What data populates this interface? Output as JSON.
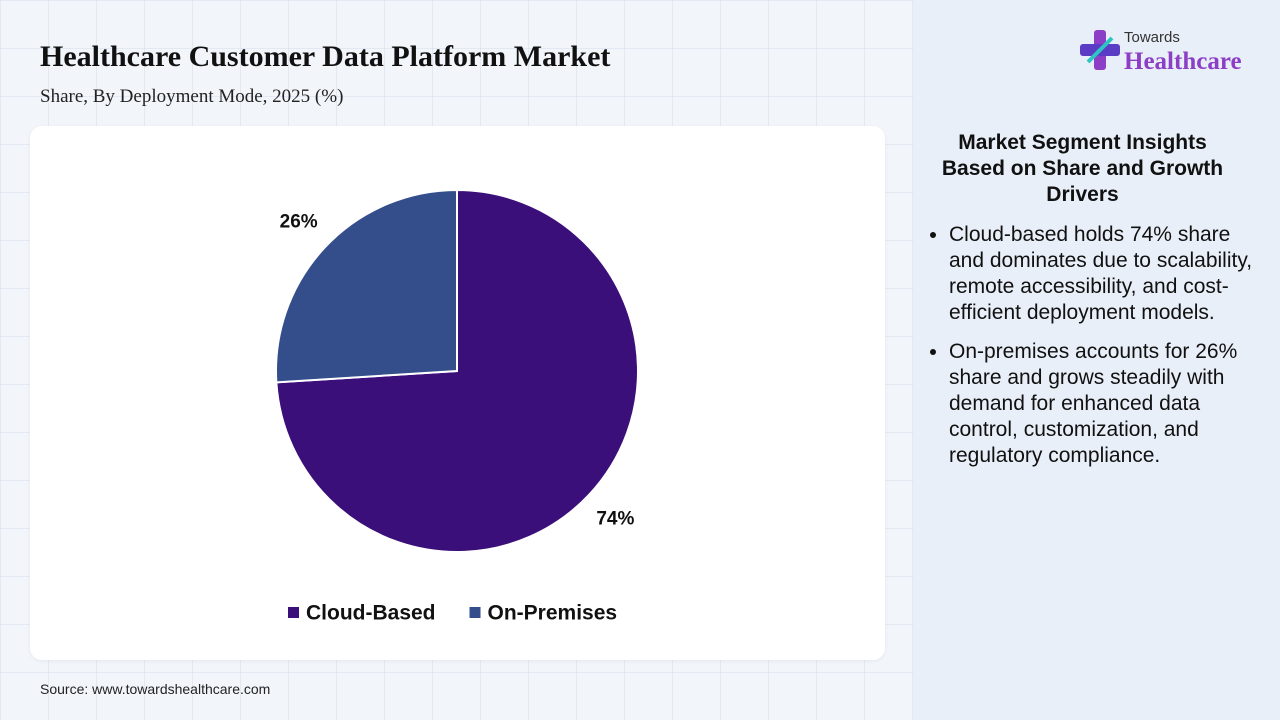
{
  "chart_data": {
    "type": "pie",
    "title": "Healthcare Customer Data Platform Market",
    "subtitle": "Share, By Deployment Mode, 2025 (%)",
    "categories": [
      "Cloud-Based",
      "On-Premises"
    ],
    "values": [
      74,
      26
    ],
    "value_labels": [
      "74%",
      "26%"
    ],
    "colors": [
      "#3b0f7a",
      "#344e8c"
    ],
    "legend": "bottom"
  },
  "source": "Source: www.towardshealthcare.com",
  "logo": {
    "line1": "Towards",
    "line2": "Healthcare"
  },
  "insights": {
    "heading": "Market Segment Insights Based on Share and Growth Drivers",
    "items": [
      "Cloud-based holds 74% share and dominates due to scalability, remote accessibility, and cost-efficient deployment models.",
      "On-premises accounts for 26% share and grows steadily with demand for enhanced data control, customization, and regulatory compliance."
    ]
  }
}
